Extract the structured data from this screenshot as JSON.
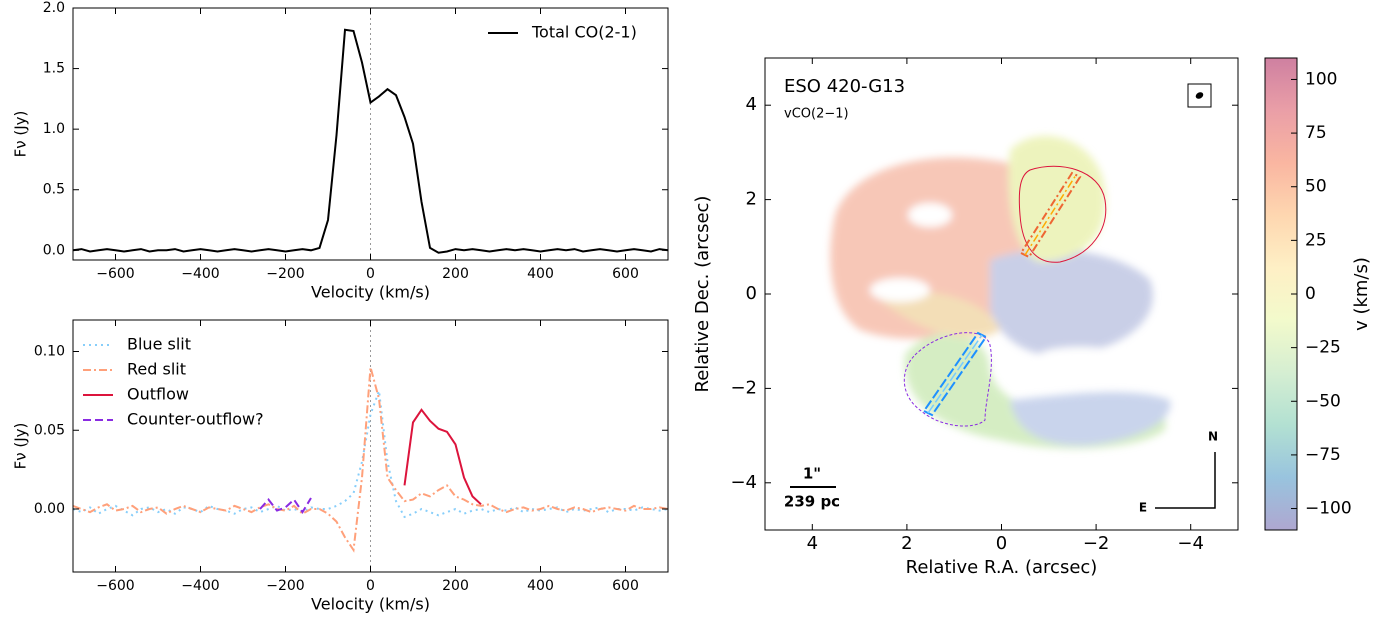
{
  "chart_data": [
    {
      "type": "line",
      "xlabel": "Velocity (km/s)",
      "ylabel": "Fν (Jy)",
      "legend": "upper right",
      "vline": 0,
      "xlim": [
        -700,
        700
      ],
      "ylim": [
        -0.08,
        2.0
      ],
      "xticks": [
        {
          "value": -600,
          "label": "−600"
        },
        {
          "value": -400,
          "label": "−400"
        },
        {
          "value": -200,
          "label": "−200"
        },
        0,
        200,
        400,
        600
      ],
      "yticks": [
        {
          "value": 0,
          "label": "0.0"
        },
        0.5,
        {
          "value": 1,
          "label": "1.0"
        },
        1.5,
        {
          "value": 2,
          "label": "2.0"
        }
      ],
      "x": [
        -700,
        -680,
        -660,
        -640,
        -620,
        -600,
        -580,
        -560,
        -540,
        -520,
        -500,
        -480,
        -460,
        -440,
        -420,
        -400,
        -380,
        -360,
        -340,
        -320,
        -300,
        -280,
        -260,
        -240,
        -220,
        -200,
        -180,
        -160,
        -140,
        -120,
        -100,
        -80,
        -60,
        -40,
        -20,
        0,
        20,
        40,
        60,
        80,
        100,
        120,
        140,
        160,
        180,
        200,
        220,
        240,
        260,
        280,
        300,
        320,
        340,
        360,
        380,
        400,
        420,
        440,
        460,
        480,
        500,
        520,
        540,
        560,
        580,
        600,
        620,
        640,
        660,
        680,
        700
      ],
      "series": [
        {
          "name": "Total CO(2-1)",
          "color": "#000000",
          "dash": "solid",
          "values": [
            0.0,
            0.01,
            -0.01,
            0.0,
            0.01,
            0.0,
            -0.01,
            0.0,
            0.01,
            -0.01,
            0.0,
            0.0,
            0.01,
            -0.01,
            0.0,
            0.01,
            0.0,
            -0.01,
            0.0,
            0.01,
            0.0,
            -0.01,
            0.0,
            0.01,
            0.0,
            -0.01,
            0.0,
            0.01,
            0.0,
            0.02,
            0.25,
            0.95,
            1.82,
            1.81,
            1.55,
            1.22,
            1.27,
            1.33,
            1.28,
            1.1,
            0.88,
            0.4,
            0.02,
            -0.02,
            -0.01,
            0.01,
            0.0,
            0.01,
            0.0,
            -0.01,
            0.0,
            0.01,
            0.0,
            0.01,
            0.0,
            -0.01,
            0.0,
            0.01,
            0.0,
            0.01,
            -0.01,
            0.0,
            0.01,
            0.0,
            -0.01,
            0.0,
            0.01,
            0.0,
            -0.01,
            0.01,
            0.0
          ]
        }
      ]
    },
    {
      "type": "line",
      "xlabel": "Velocity (km/s)",
      "ylabel": "Fν (Jy)",
      "legend": "upper left",
      "vline": 0,
      "xlim": [
        -700,
        700
      ],
      "ylim": [
        -0.04,
        0.12
      ],
      "xticks": [
        {
          "value": -600,
          "label": "−600"
        },
        {
          "value": -400,
          "label": "−400"
        },
        {
          "value": -200,
          "label": "−200"
        },
        0,
        200,
        400,
        600
      ],
      "yticks": [
        {
          "value": 0,
          "label": "0.00"
        },
        {
          "value": 0.05,
          "label": "0.05"
        },
        {
          "value": 0.1,
          "label": "0.10"
        }
      ],
      "x": [
        -700,
        -680,
        -660,
        -640,
        -620,
        -600,
        -580,
        -560,
        -540,
        -520,
        -500,
        -480,
        -460,
        -440,
        -420,
        -400,
        -380,
        -360,
        -340,
        -320,
        -300,
        -280,
        -260,
        -240,
        -220,
        -200,
        -180,
        -160,
        -140,
        -120,
        -100,
        -80,
        -60,
        -40,
        -20,
        0,
        20,
        40,
        60,
        80,
        100,
        120,
        140,
        160,
        180,
        200,
        220,
        240,
        260,
        280,
        300,
        320,
        340,
        360,
        380,
        400,
        420,
        440,
        460,
        480,
        500,
        520,
        540,
        560,
        580,
        600,
        620,
        640,
        660,
        680,
        700
      ],
      "series": [
        {
          "name": "Blue slit",
          "color": "#87cefa",
          "dash": "dotted",
          "values": [
            0.0,
            -0.002,
            0.001,
            -0.003,
            0.0,
            0.002,
            -0.001,
            -0.004,
            0.0,
            0.001,
            -0.002,
            0.0,
            -0.003,
            0.001,
            0.0,
            -0.002,
            0.002,
            0.0,
            -0.001,
            -0.003,
            0.0,
            0.001,
            -0.002,
            0.0,
            0.002,
            -0.001,
            0.0,
            -0.002,
            0.001,
            0.0,
            0.0,
            0.002,
            0.005,
            0.01,
            0.03,
            0.06,
            0.075,
            0.03,
            0.005,
            -0.005,
            -0.003,
            0.0,
            -0.002,
            -0.004,
            -0.002,
            0.0,
            -0.003,
            -0.001,
            0.0,
            -0.002,
            0.0,
            -0.001,
            0.001,
            -0.002,
            0.0,
            -0.001,
            0.0,
            0.001,
            -0.002,
            0.0,
            -0.001,
            0.0,
            0.001,
            -0.002,
            0.0,
            0.0,
            -0.001,
            0.001,
            0.0,
            -0.001,
            0.0
          ]
        },
        {
          "name": "Red slit",
          "color": "#ffa07a",
          "dash": "dashdot",
          "values": [
            0.002,
            0.0,
            -0.002,
            0.001,
            0.003,
            -0.001,
            0.0,
            0.002,
            -0.002,
            0.0,
            0.001,
            -0.003,
            0.0,
            0.002,
            0.0,
            -0.002,
            0.001,
            0.0,
            -0.001,
            0.002,
            0.0,
            -0.002,
            0.001,
            0.003,
            0.0,
            -0.001,
            0.002,
            -0.003,
            0.0,
            0.0,
            -0.003,
            -0.008,
            -0.018,
            -0.026,
            0.02,
            0.09,
            0.07,
            0.02,
            0.012,
            0.005,
            0.006,
            0.01,
            0.008,
            0.012,
            0.015,
            0.008,
            0.006,
            0.003,
            0.002,
            0.003,
            0.0,
            -0.002,
            0.0,
            0.001,
            -0.001,
            0.0,
            0.002,
            0.0,
            -0.001,
            0.001,
            0.0,
            -0.002,
            0.0,
            0.001,
            0.0,
            -0.001,
            0.002,
            0.0,
            0.0,
            0.001,
            0.0
          ]
        },
        {
          "name": "Outflow",
          "color": "#dc143c",
          "dash": "solid",
          "values": [
            null,
            null,
            null,
            null,
            null,
            null,
            null,
            null,
            null,
            null,
            null,
            null,
            null,
            null,
            null,
            null,
            null,
            null,
            null,
            null,
            null,
            null,
            null,
            null,
            null,
            null,
            null,
            null,
            null,
            null,
            null,
            null,
            null,
            null,
            null,
            null,
            null,
            null,
            null,
            0.015,
            0.055,
            0.063,
            0.056,
            0.051,
            0.049,
            0.041,
            0.02,
            0.008,
            0.003,
            null,
            null,
            null,
            null,
            null,
            null,
            null,
            null,
            null,
            null,
            null,
            null,
            null,
            null,
            null,
            null,
            null,
            null,
            null,
            null,
            null,
            null
          ]
        },
        {
          "name": "Counter-outflow?",
          "color": "#8a2be2",
          "dash": "dashed",
          "values": [
            null,
            null,
            null,
            null,
            null,
            null,
            null,
            null,
            null,
            null,
            null,
            null,
            null,
            null,
            null,
            null,
            null,
            null,
            null,
            null,
            null,
            null,
            0.0,
            0.006,
            -0.001,
            0.001,
            0.006,
            -0.002,
            0.007,
            null,
            null,
            null,
            null,
            null,
            null,
            null,
            null,
            null,
            null,
            null,
            null,
            null,
            null,
            null,
            null,
            null,
            null,
            null,
            null,
            null,
            null,
            null,
            null,
            null,
            null,
            null,
            null,
            null,
            null,
            null,
            null,
            null,
            null,
            null,
            null,
            null,
            null,
            null,
            null,
            null,
            null
          ]
        }
      ]
    },
    {
      "type": "map",
      "title": "ESO 420-G13",
      "subtitle": "vCO(2−1)",
      "xlabel": "Relative R.A. (arcsec)",
      "ylabel": "Relative Dec. (arcsec)",
      "xlim": [
        5,
        -5
      ],
      "ylim": [
        -5,
        5
      ],
      "xticks": [
        4,
        2,
        0,
        {
          "value": -2,
          "label": "−2"
        },
        {
          "value": -4,
          "label": "−4"
        }
      ],
      "yticks": [
        {
          "value": -4,
          "label": "−4"
        },
        {
          "value": -2,
          "label": "−2"
        },
        0,
        2,
        4
      ],
      "colorbar": {
        "label": "v (km/s)",
        "colormap": "Spectral_r",
        "clim": [
          -110,
          110
        ],
        "ticks": [
          {
            "value": -100,
            "label": "−100"
          },
          {
            "value": -75,
            "label": "−75"
          },
          {
            "value": -50,
            "label": "−50"
          },
          {
            "value": -25,
            "label": "−25"
          },
          0,
          25,
          50,
          75,
          100
        ]
      },
      "annotations": {
        "scale_angle": "1\"",
        "scale_length": "239 pc",
        "north": "N",
        "east": "E"
      }
    }
  ]
}
